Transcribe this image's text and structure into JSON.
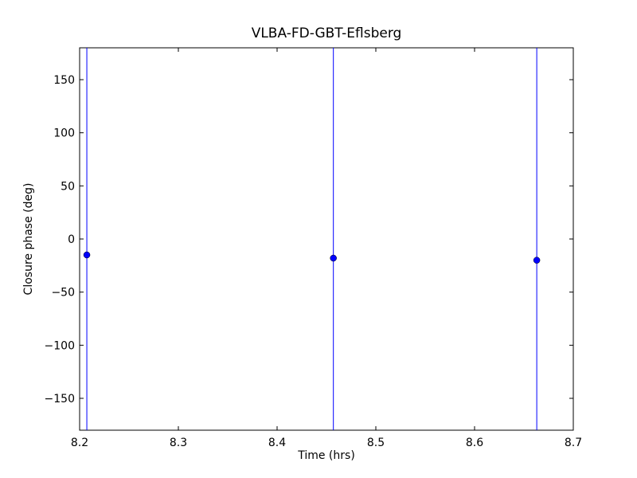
{
  "chart_data": {
    "type": "scatter",
    "title": "VLBA-FD-GBT-Eflsberg",
    "x_label": "Time (hrs)",
    "y_label": "Closure phase (deg)",
    "series": [
      {
        "color": "#0000ff",
        "x": [
          8.2073,
          8.457,
          8.663
        ],
        "values": [
          -15,
          -18,
          -20
        ],
        "errors": [
          200,
          200,
          200
        ]
      }
    ],
    "xlim": [
      8.2,
      8.7
    ],
    "xticks": [
      8.2,
      8.3,
      8.4,
      8.5,
      8.6,
      8.7
    ],
    "ylim": [
      -180,
      180
    ],
    "yticks": [
      {
        "value": -150,
        "label": "−150"
      },
      {
        "value": -100,
        "label": "−100"
      },
      {
        "value": -50,
        "label": "−50"
      },
      0,
      50,
      100,
      150
    ],
    "grid": false
  }
}
